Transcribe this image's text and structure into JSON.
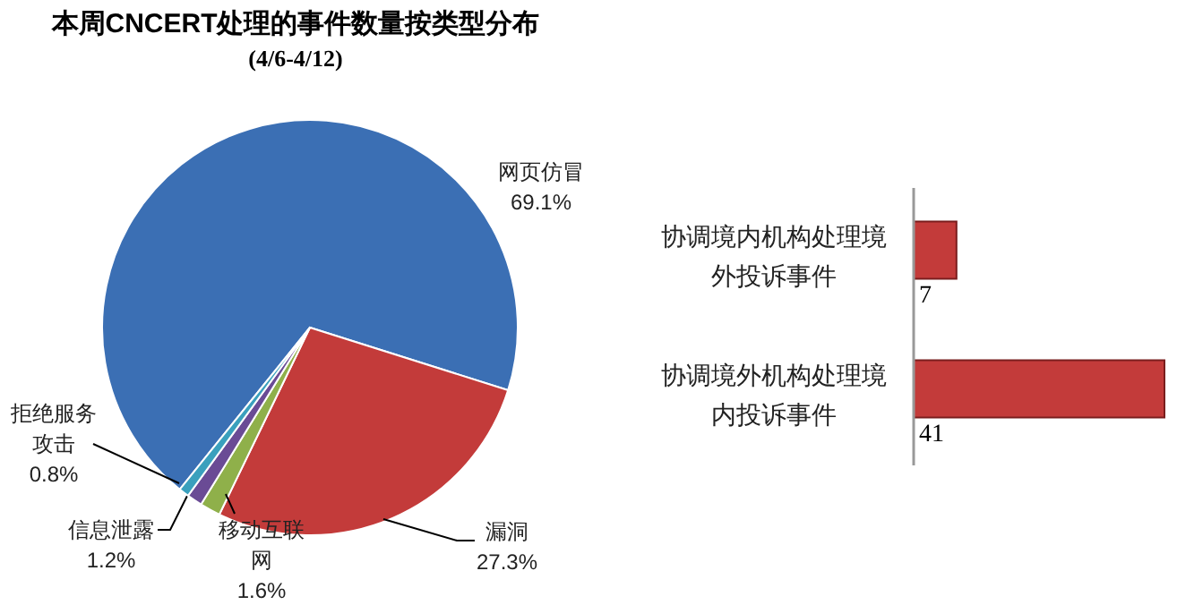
{
  "chart_data": [
    {
      "type": "pie",
      "title": "本周CNCERT处理的事件数量按类型分布",
      "subtitle": "(4/6-4/12)",
      "categories": [
        "网页仿冒",
        "漏洞",
        "移动互联网",
        "信息泄露",
        "拒绝服务攻击"
      ],
      "values": [
        69.1,
        27.3,
        1.6,
        1.2,
        0.8
      ],
      "colors": [
        "#3b6fb4",
        "#c33b3a",
        "#8fb04a",
        "#6a4b95",
        "#3aa0bd"
      ],
      "value_labels": [
        "69.1%",
        "27.3%",
        "1.6%",
        "1.2%",
        "0.8%"
      ]
    },
    {
      "type": "bar",
      "orientation": "horizontal",
      "categories": [
        "协调境内机构处理境外投诉事件",
        "协调境外机构处理境内投诉事件"
      ],
      "values": [
        7,
        41
      ],
      "color": "#c33b3a",
      "data_labels": true
    }
  ]
}
